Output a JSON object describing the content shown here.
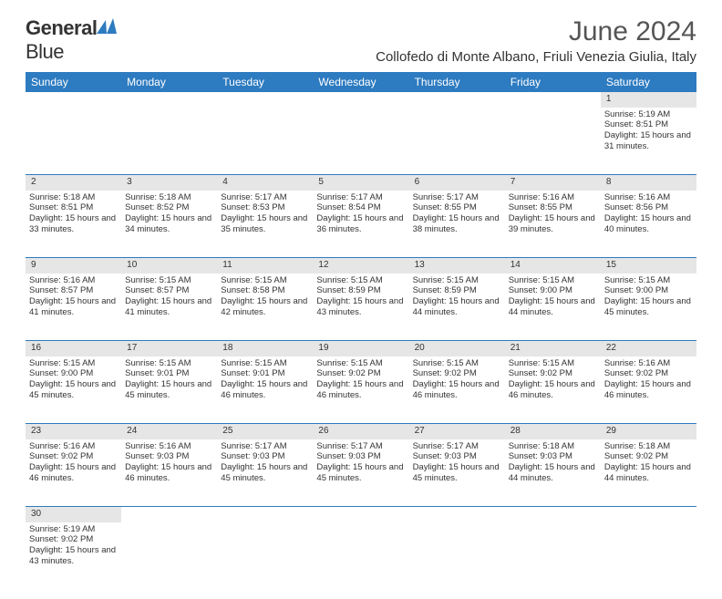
{
  "logo": {
    "text_a": "General",
    "text_b": "Blue",
    "icon_color": "#2d7bc0"
  },
  "title": "June 2024",
  "location": "Collofedo di Monte Albano, Friuli Venezia Giulia, Italy",
  "colors": {
    "header_bg": "#2d7bc0",
    "daynum_bg": "#e6e6e6",
    "rule": "#2d7bc0",
    "text": "#333333"
  },
  "weekdays": [
    "Sunday",
    "Monday",
    "Tuesday",
    "Wednesday",
    "Thursday",
    "Friday",
    "Saturday"
  ],
  "weeks": [
    [
      null,
      null,
      null,
      null,
      null,
      null,
      {
        "n": "1",
        "sr": "5:19 AM",
        "ss": "8:51 PM",
        "dl": "15 hours and 31 minutes."
      }
    ],
    [
      {
        "n": "2",
        "sr": "5:18 AM",
        "ss": "8:51 PM",
        "dl": "15 hours and 33 minutes."
      },
      {
        "n": "3",
        "sr": "5:18 AM",
        "ss": "8:52 PM",
        "dl": "15 hours and 34 minutes."
      },
      {
        "n": "4",
        "sr": "5:17 AM",
        "ss": "8:53 PM",
        "dl": "15 hours and 35 minutes."
      },
      {
        "n": "5",
        "sr": "5:17 AM",
        "ss": "8:54 PM",
        "dl": "15 hours and 36 minutes."
      },
      {
        "n": "6",
        "sr": "5:17 AM",
        "ss": "8:55 PM",
        "dl": "15 hours and 38 minutes."
      },
      {
        "n": "7",
        "sr": "5:16 AM",
        "ss": "8:55 PM",
        "dl": "15 hours and 39 minutes."
      },
      {
        "n": "8",
        "sr": "5:16 AM",
        "ss": "8:56 PM",
        "dl": "15 hours and 40 minutes."
      }
    ],
    [
      {
        "n": "9",
        "sr": "5:16 AM",
        "ss": "8:57 PM",
        "dl": "15 hours and 41 minutes."
      },
      {
        "n": "10",
        "sr": "5:15 AM",
        "ss": "8:57 PM",
        "dl": "15 hours and 41 minutes."
      },
      {
        "n": "11",
        "sr": "5:15 AM",
        "ss": "8:58 PM",
        "dl": "15 hours and 42 minutes."
      },
      {
        "n": "12",
        "sr": "5:15 AM",
        "ss": "8:59 PM",
        "dl": "15 hours and 43 minutes."
      },
      {
        "n": "13",
        "sr": "5:15 AM",
        "ss": "8:59 PM",
        "dl": "15 hours and 44 minutes."
      },
      {
        "n": "14",
        "sr": "5:15 AM",
        "ss": "9:00 PM",
        "dl": "15 hours and 44 minutes."
      },
      {
        "n": "15",
        "sr": "5:15 AM",
        "ss": "9:00 PM",
        "dl": "15 hours and 45 minutes."
      }
    ],
    [
      {
        "n": "16",
        "sr": "5:15 AM",
        "ss": "9:00 PM",
        "dl": "15 hours and 45 minutes."
      },
      {
        "n": "17",
        "sr": "5:15 AM",
        "ss": "9:01 PM",
        "dl": "15 hours and 45 minutes."
      },
      {
        "n": "18",
        "sr": "5:15 AM",
        "ss": "9:01 PM",
        "dl": "15 hours and 46 minutes."
      },
      {
        "n": "19",
        "sr": "5:15 AM",
        "ss": "9:02 PM",
        "dl": "15 hours and 46 minutes."
      },
      {
        "n": "20",
        "sr": "5:15 AM",
        "ss": "9:02 PM",
        "dl": "15 hours and 46 minutes."
      },
      {
        "n": "21",
        "sr": "5:15 AM",
        "ss": "9:02 PM",
        "dl": "15 hours and 46 minutes."
      },
      {
        "n": "22",
        "sr": "5:16 AM",
        "ss": "9:02 PM",
        "dl": "15 hours and 46 minutes."
      }
    ],
    [
      {
        "n": "23",
        "sr": "5:16 AM",
        "ss": "9:02 PM",
        "dl": "15 hours and 46 minutes."
      },
      {
        "n": "24",
        "sr": "5:16 AM",
        "ss": "9:03 PM",
        "dl": "15 hours and 46 minutes."
      },
      {
        "n": "25",
        "sr": "5:17 AM",
        "ss": "9:03 PM",
        "dl": "15 hours and 45 minutes."
      },
      {
        "n": "26",
        "sr": "5:17 AM",
        "ss": "9:03 PM",
        "dl": "15 hours and 45 minutes."
      },
      {
        "n": "27",
        "sr": "5:17 AM",
        "ss": "9:03 PM",
        "dl": "15 hours and 45 minutes."
      },
      {
        "n": "28",
        "sr": "5:18 AM",
        "ss": "9:03 PM",
        "dl": "15 hours and 44 minutes."
      },
      {
        "n": "29",
        "sr": "5:18 AM",
        "ss": "9:02 PM",
        "dl": "15 hours and 44 minutes."
      }
    ],
    [
      {
        "n": "30",
        "sr": "5:19 AM",
        "ss": "9:02 PM",
        "dl": "15 hours and 43 minutes."
      },
      null,
      null,
      null,
      null,
      null,
      null
    ]
  ],
  "labels": {
    "sunrise": "Sunrise:",
    "sunset": "Sunset:",
    "daylight": "Daylight:"
  }
}
